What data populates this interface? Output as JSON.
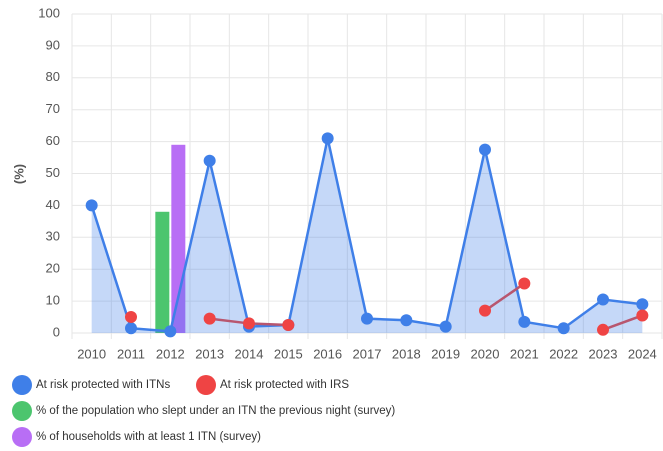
{
  "chart_data": {
    "type": "line",
    "y_label": "(%)",
    "categories": [
      "2010",
      "2011",
      "2012",
      "2013",
      "2014",
      "2015",
      "2016",
      "2017",
      "2018",
      "2019",
      "2020",
      "2021",
      "2022",
      "2023",
      "2024"
    ],
    "series": [
      {
        "name": "At risk protected with ITNs",
        "type": "line",
        "area": true,
        "color": "#3f7fe8",
        "values": [
          40,
          1.5,
          0.5,
          54,
          2,
          2.5,
          61,
          4.5,
          4,
          2,
          57.5,
          3.5,
          1.5,
          10.5,
          9
        ]
      },
      {
        "name": "At risk protected with IRS",
        "type": "line",
        "color": "#ef4444",
        "line_color": "#b8566f",
        "values": [
          null,
          5,
          null,
          4.5,
          3,
          2.5,
          null,
          null,
          null,
          null,
          7,
          15.5,
          null,
          1,
          5.5
        ]
      },
      {
        "name": "% of the population who slept under an ITN the previous night (survey)",
        "type": "bar",
        "color": "#4cc56e",
        "values": [
          null,
          null,
          38,
          null,
          null,
          null,
          null,
          null,
          null,
          null,
          null,
          null,
          null,
          null,
          null
        ]
      },
      {
        "name": "% of households with at least 1 ITN (survey)",
        "type": "bar",
        "color": "#b86ef5",
        "values": [
          null,
          null,
          59,
          null,
          null,
          null,
          null,
          null,
          null,
          null,
          null,
          null,
          null,
          null,
          null
        ]
      }
    ],
    "ylim": [
      0,
      100
    ],
    "yticks": [
      0,
      10,
      20,
      30,
      40,
      50,
      60,
      70,
      80,
      90,
      100
    ],
    "grid": true,
    "legend": "bottom"
  }
}
